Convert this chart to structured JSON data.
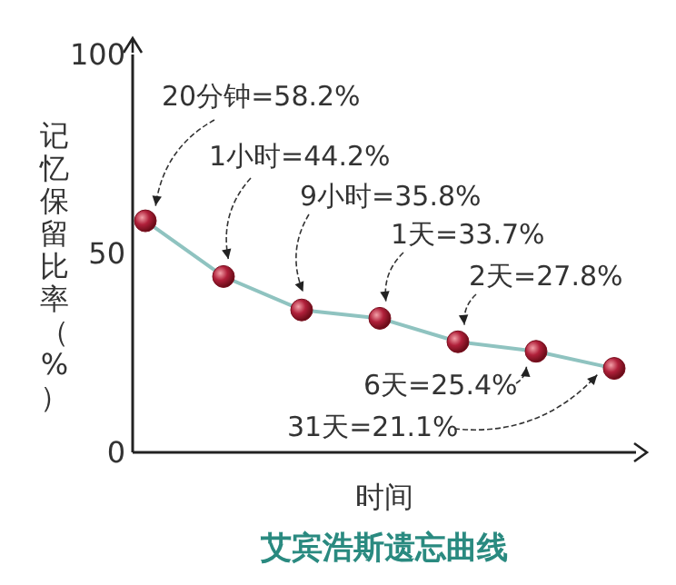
{
  "chart_data": {
    "type": "line",
    "title": "艾宾浩斯遗忘曲线",
    "xlabel": "时间",
    "ylabel": "记忆保留比率（%）",
    "categories": [
      null,
      null,
      null,
      null,
      null,
      null,
      null
    ],
    "ylim": [
      0,
      100
    ],
    "yticks": [
      0,
      50,
      100
    ],
    "grid": false,
    "marker": "circle",
    "line_style": "solid",
    "series": [
      {
        "color": "#8fc3c0",
        "values": [
          58.2,
          44.2,
          35.8,
          33.7,
          27.8,
          25.4,
          21.1
        ],
        "value_labels": [
          "20分钟=58.2%",
          "1小时=44.2%",
          "9小时=35.8%",
          "1天=33.7%",
          "2天=27.8%",
          "6天=25.4%",
          "31天=21.1%"
        ]
      }
    ]
  }
}
